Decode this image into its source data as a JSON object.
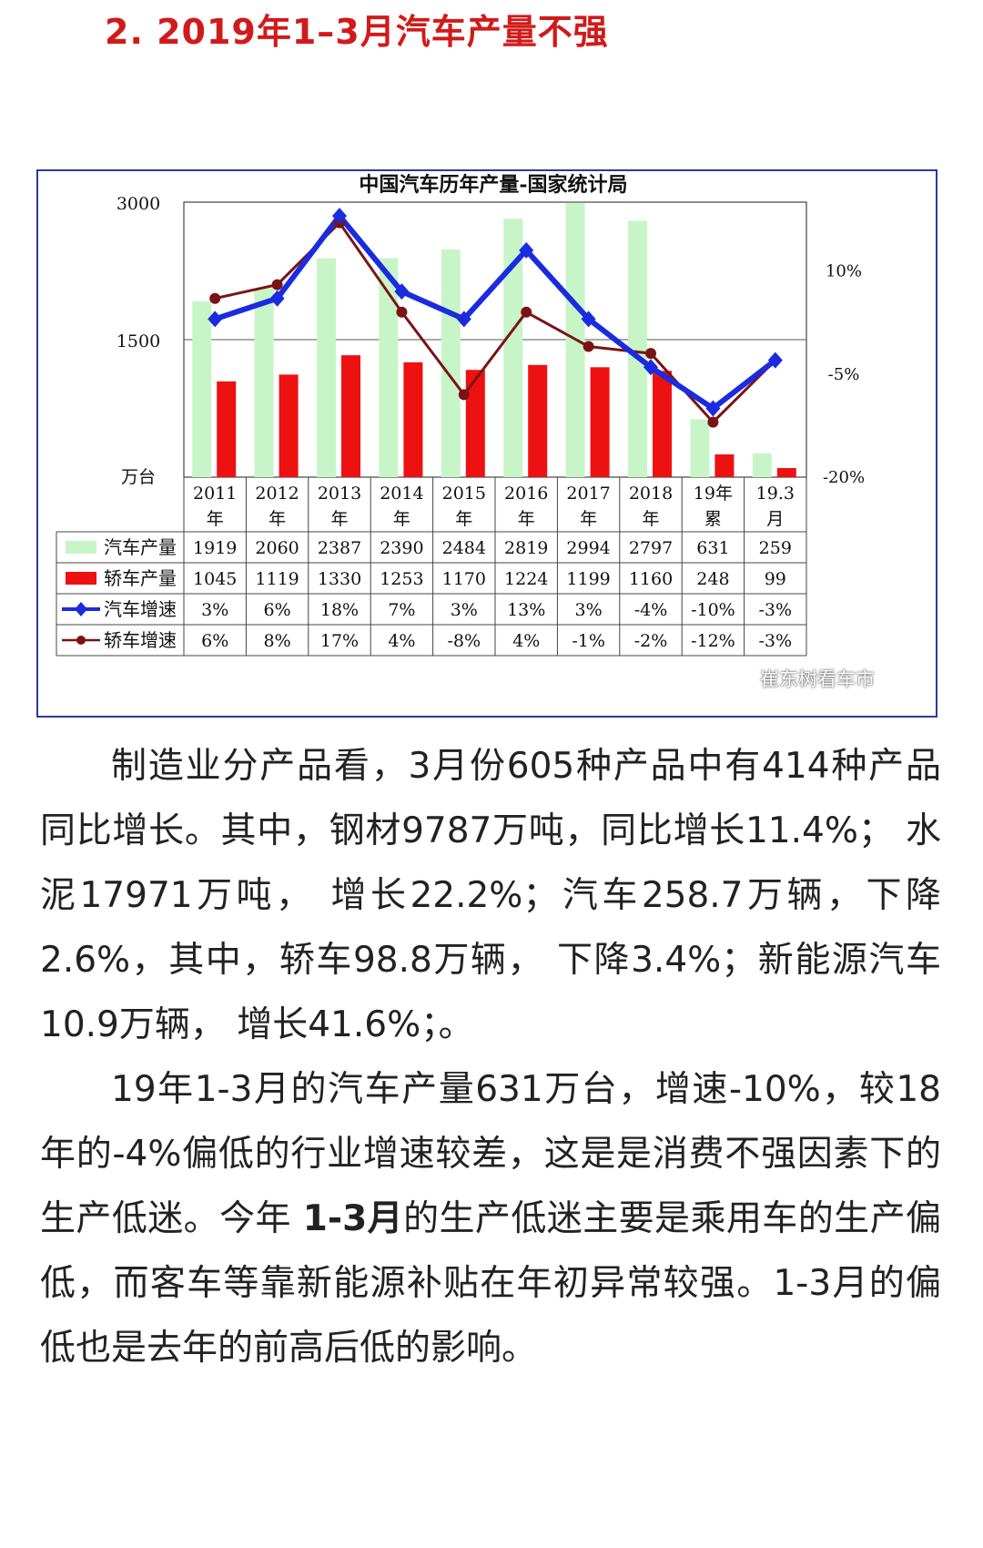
{
  "heading": "2. 2019年1–3月汽车产量不强",
  "chart_data": {
    "type": "bar",
    "title": "中国汽车历年产量-国家统计局",
    "y_unit": "万台",
    "categories": [
      [
        "2011",
        "年"
      ],
      [
        "2012",
        "年"
      ],
      [
        "2013",
        "年"
      ],
      [
        "2014",
        "年"
      ],
      [
        "2015",
        "年"
      ],
      [
        "2016",
        "年"
      ],
      [
        "2017",
        "年"
      ],
      [
        "2018",
        "年"
      ],
      [
        "19年",
        "累"
      ],
      [
        "19.3",
        "月"
      ]
    ],
    "ylim": [
      0,
      3000
    ],
    "y_ticks": [
      "3000",
      "1500"
    ],
    "y2lim": [
      -20,
      20
    ],
    "y2_ticks": [
      "10%",
      "-5%",
      "-20%"
    ],
    "series": [
      {
        "name": "汽车产量",
        "kind": "bar",
        "color": "#c8f5c8",
        "values": [
          1919,
          2060,
          2387,
          2390,
          2484,
          2819,
          2994,
          2797,
          631,
          259
        ],
        "labels": [
          "1919",
          "2060",
          "2387",
          "2390",
          "2484",
          "2819",
          "2994",
          "2797",
          "631",
          "259"
        ]
      },
      {
        "name": "轿车产量",
        "kind": "bar",
        "color": "#ee1111",
        "values": [
          1045,
          1119,
          1330,
          1253,
          1170,
          1224,
          1199,
          1160,
          248,
          99
        ],
        "labels": [
          "1045",
          "1119",
          "1330",
          "1253",
          "1170",
          "1224",
          "1199",
          "1160",
          "248",
          "99"
        ]
      },
      {
        "name": "汽车增速",
        "kind": "line",
        "color": "#1a2be0",
        "values": [
          3,
          6,
          18,
          7,
          3,
          13,
          3,
          -4,
          -10,
          -3
        ],
        "labels": [
          "3%",
          "6%",
          "18%",
          "7%",
          "3%",
          "13%",
          "3%",
          "-4%",
          "-10%",
          "-3%"
        ]
      },
      {
        "name": "轿车增速",
        "kind": "line",
        "color": "#7a1414",
        "values": [
          6,
          8,
          17,
          4,
          -8,
          4,
          -1,
          -2,
          -12,
          -3
        ],
        "labels": [
          "6%",
          "8%",
          "17%",
          "4%",
          "-8%",
          "4%",
          "-1%",
          "-2%",
          "-12%",
          "-3%"
        ]
      }
    ]
  },
  "watermark": "崔东树看车市",
  "paragraphs": [
    {
      "parts": [
        {
          "text": "制造业分产品看，3月份605种产品中有414种产品同比增长。其中，钢材9787万吨，同比增长11.4%； 水泥17971万吨， 增长22.2%；汽车258.7万辆，下降2.6%，其中，轿车98.8万辆， 下降3.4%；新能源汽车10.9万辆， 增长41.6%；。",
          "bold": false
        }
      ]
    },
    {
      "parts": [
        {
          "text": "19年1-3月的汽车产量631万台，增速-10%，较18年的-4%偏低的行业增速较差，这是是消费不强因素下的生产低迷。今年 ",
          "bold": false
        },
        {
          "text": "1-3月",
          "bold": true
        },
        {
          "text": "的生产低迷主要是乘用车的生产偏低，而客车等靠新能源补贴在年初异常较强。1-3月的偏低也是去年的前高后低的影响。",
          "bold": false
        }
      ]
    }
  ]
}
